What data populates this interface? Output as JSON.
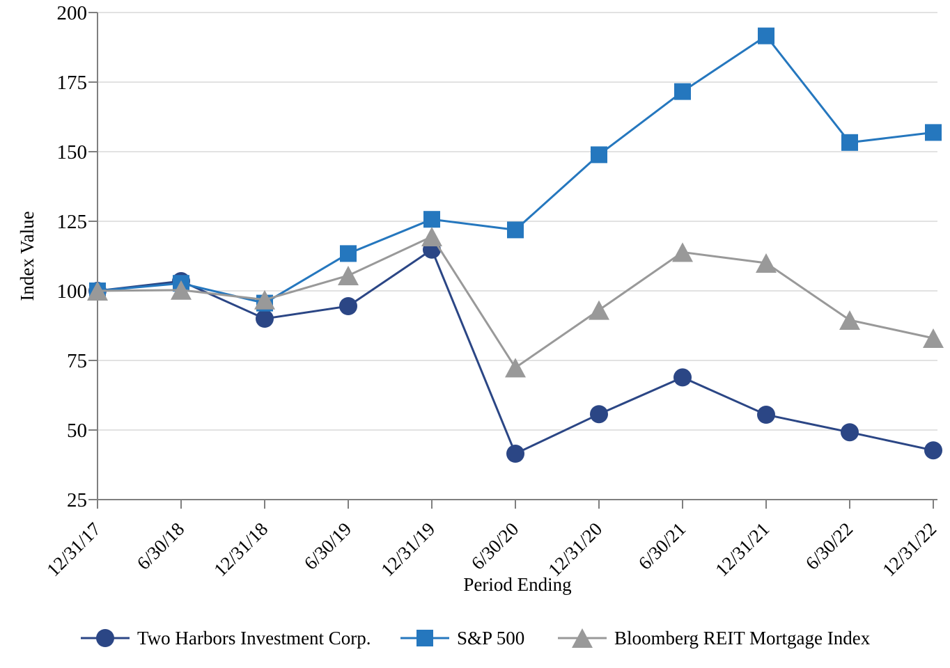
{
  "chart_data": {
    "type": "line",
    "title": "",
    "xlabel": "Period Ending",
    "ylabel": "Index Value",
    "ylim": [
      25,
      200
    ],
    "ytick_step": 25,
    "ytick_labels": [
      "200",
      "175",
      "150",
      "125",
      "100",
      "75",
      "50",
      "25"
    ],
    "grid": true,
    "legend_position": "bottom",
    "categories": [
      "12/31/17",
      "6/30/18",
      "12/31/18",
      "6/30/19",
      "12/31/19",
      "6/30/20",
      "12/31/20",
      "6/30/21",
      "12/31/21",
      "6/30/22",
      "12/31/22"
    ],
    "series": [
      {
        "name": "Two Harbors Investment Corp.",
        "marker": "circle",
        "color": "#2b4685",
        "values": [
          100,
          103.5,
          90.0,
          94.5,
          114.8,
          41.5,
          55.7,
          68.9,
          55.5,
          49.2,
          42.7
        ]
      },
      {
        "name": "S&P 500",
        "marker": "square",
        "color": "#2577be",
        "values": [
          100,
          102.7,
          95.6,
          113.4,
          125.7,
          121.9,
          148.9,
          171.6,
          191.6,
          153.3,
          156.9
        ]
      },
      {
        "name": "Bloomberg REIT Mortgage Index",
        "marker": "triangle",
        "color": "#999999",
        "values": [
          100,
          100.3,
          96.8,
          105.5,
          119.5,
          72.4,
          93.1,
          113.9,
          110.0,
          89.5,
          83.0
        ]
      }
    ],
    "colors": {
      "gridline": "#d9d9d9",
      "axis": "#7f7f7f",
      "text": "#000000"
    }
  }
}
